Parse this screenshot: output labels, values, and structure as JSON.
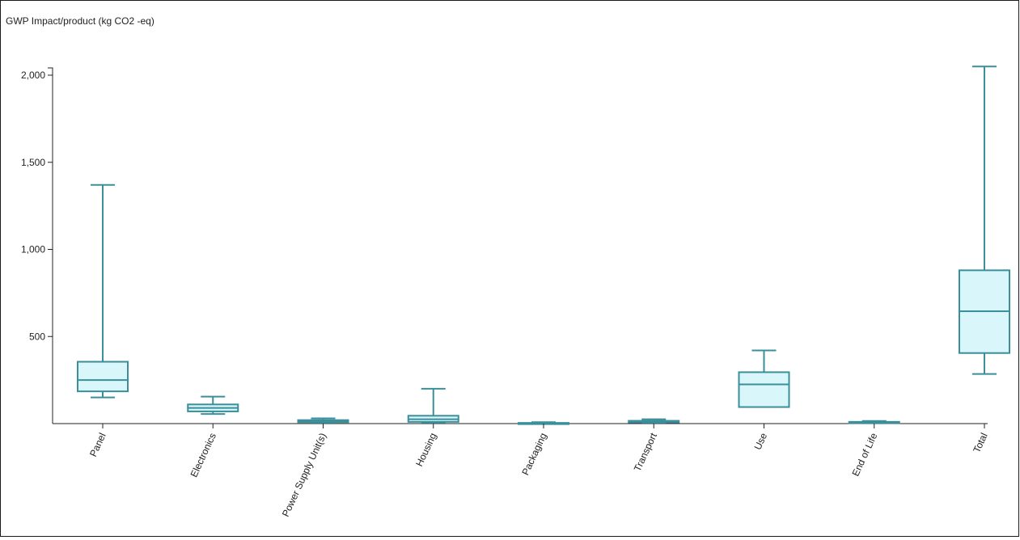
{
  "chart_data": {
    "type": "box",
    "title": "",
    "ylabel": "GWP Impact/product (kg CO2 -eq)",
    "xlabel": "",
    "ylim": [
      0,
      2000
    ],
    "yticks": [
      500,
      1000,
      1500,
      2000
    ],
    "ytick_labels": [
      "500",
      "1,000",
      "1,500",
      "2,000"
    ],
    "grid": false,
    "categories": [
      "Panel",
      "Electronics",
      "Power Supply Unit(s)",
      "Housing",
      "Packaging",
      "Transport",
      "Use",
      "End of Life",
      "Total"
    ],
    "boxes": [
      {
        "min": 150,
        "q1": 185,
        "median": 250,
        "q3": 355,
        "max": 1370
      },
      {
        "min": 55,
        "q1": 70,
        "median": 90,
        "q3": 110,
        "max": 155
      },
      {
        "min": 5,
        "q1": 8,
        "median": 15,
        "q3": 20,
        "max": 30
      },
      {
        "min": 5,
        "q1": 10,
        "median": 25,
        "q3": 45,
        "max": 200
      },
      {
        "min": 0,
        "q1": 0,
        "median": 2,
        "q3": 4,
        "max": 8
      },
      {
        "min": 5,
        "q1": 7,
        "median": 12,
        "q3": 16,
        "max": 25
      },
      {
        "min": 95,
        "q1": 95,
        "median": 225,
        "q3": 295,
        "max": 420
      },
      {
        "min": 2,
        "q1": 4,
        "median": 7,
        "q3": 10,
        "max": 15
      },
      {
        "min": 285,
        "q1": 405,
        "median": 645,
        "q3": 880,
        "max": 2050
      }
    ],
    "colors": {
      "stroke": "#3a8f9a",
      "fill": "#d9f6fb",
      "axis": "#222222"
    }
  }
}
